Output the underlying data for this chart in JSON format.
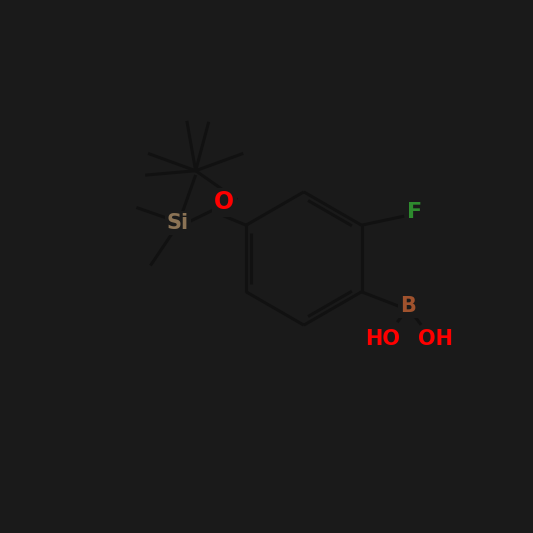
{
  "bg_color": "#1a1a1a",
  "bond_color": "#000000",
  "line_color": "#111111",
  "atom_colors": {
    "O": "#ff0000",
    "Si": "#8b7355",
    "F": "#2e8b2e",
    "B": "#a0522d",
    "HO": "#ff0000",
    "C": "#000000"
  },
  "bond_width": 2.2,
  "font_size_main": 15
}
